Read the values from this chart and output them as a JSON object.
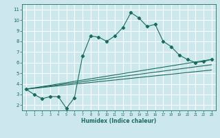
{
  "xlabel": "Humidex (Indice chaleur)",
  "bg_color": "#cce8ed",
  "line_color": "#1a6b5e",
  "grid_color": "#ffffff",
  "xlim": [
    -0.5,
    23.5
  ],
  "ylim": [
    1.5,
    11.5
  ],
  "xticks": [
    0,
    1,
    2,
    3,
    4,
    5,
    6,
    7,
    8,
    9,
    10,
    11,
    12,
    13,
    14,
    15,
    16,
    17,
    18,
    19,
    20,
    21,
    22,
    23
  ],
  "yticks": [
    2,
    3,
    4,
    5,
    6,
    7,
    8,
    9,
    10,
    11
  ],
  "curve1_x": [
    0,
    1,
    2,
    3,
    4,
    5,
    6,
    7,
    8,
    9,
    10,
    11,
    12,
    13,
    14,
    15,
    16,
    17,
    18,
    19,
    20,
    21,
    22,
    23
  ],
  "curve1_y": [
    3.5,
    3.0,
    2.6,
    2.8,
    2.8,
    1.7,
    2.7,
    6.6,
    8.5,
    8.4,
    8.0,
    8.5,
    9.3,
    10.7,
    10.2,
    9.4,
    9.6,
    8.0,
    7.5,
    6.7,
    6.3,
    6.0,
    6.1,
    6.3
  ],
  "line2_x": [
    0,
    23
  ],
  "line2_y": [
    3.5,
    6.3
  ],
  "line3_x": [
    0,
    23
  ],
  "line3_y": [
    3.5,
    5.8
  ],
  "line4_x": [
    0,
    23
  ],
  "line4_y": [
    3.5,
    5.3
  ]
}
